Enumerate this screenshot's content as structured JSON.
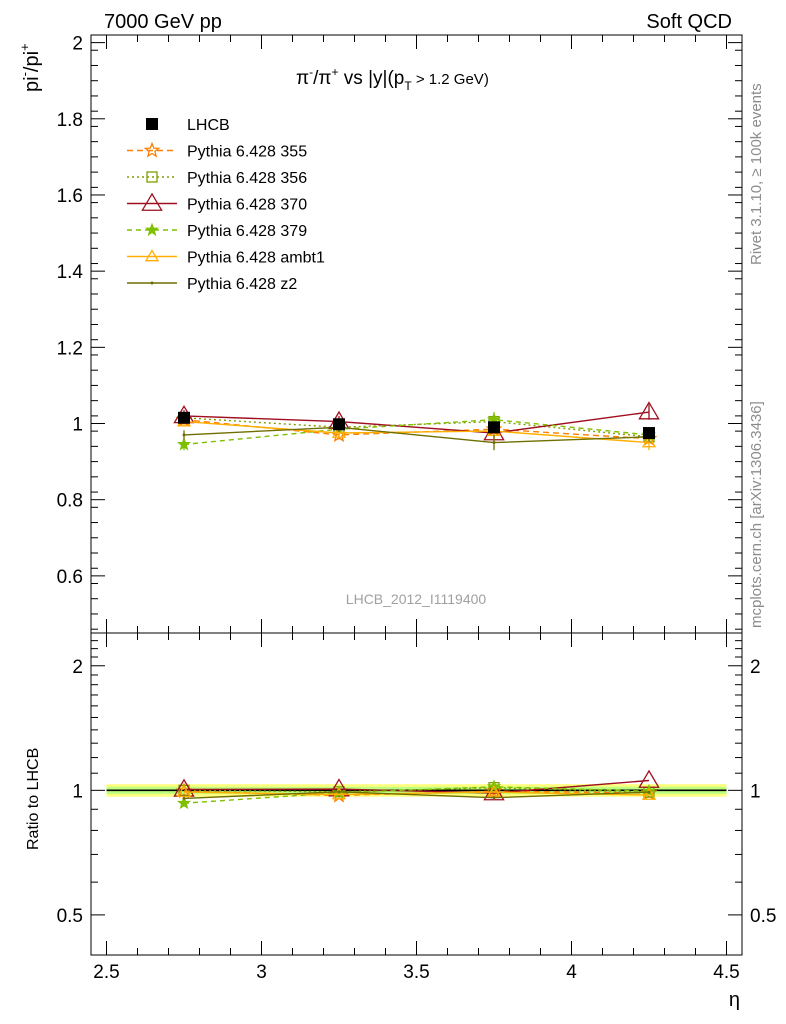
{
  "header": {
    "left": "7000 GeV pp",
    "right": "Soft QCD"
  },
  "side_texts": {
    "rivet": "Rivet 3.1.10, ≥ 100k events",
    "mcplots": "mcplots.cern.ch [arXiv:1306.3436]"
  },
  "watermark": "LHCB_2012_I1119400",
  "colors": {
    "data": "#000000",
    "p355": "#ff7f00",
    "p356": "#7f9f00",
    "p370": "#9f0f1f",
    "p379": "#7fbf00",
    "ambt1": "#ffaf00",
    "z2": "#6f6f00",
    "band_yellow": "#ffff7f",
    "band_green": "#bfff7f"
  },
  "chart_data": [
    {
      "type": "line",
      "title": "π⁻/π⁺ vs |y|(p_T > 1.2 GeV)",
      "ylabel": "pi⁻/pi⁺",
      "ylim": [
        0.45,
        2.02
      ],
      "yticks": [
        "0.6",
        "0.8",
        "1",
        "1.2",
        "1.4",
        "1.6",
        "1.8",
        "2"
      ],
      "x": [
        2.75,
        3.25,
        3.75,
        4.25
      ],
      "xlim": [
        2.45,
        4.55
      ],
      "legend_position": "top-left",
      "series": [
        {
          "name": "LHCB",
          "key": "data",
          "values": [
            1.015,
            0.998,
            0.99,
            0.975
          ],
          "errors": [
            0.012,
            0.012,
            0.015,
            0.015
          ]
        },
        {
          "name": "Pythia 6.428 355",
          "key": "p355",
          "values": [
            1.01,
            0.97,
            0.985,
            0.96
          ],
          "errors": [
            0.012,
            0.012,
            0.012,
            0.012
          ]
        },
        {
          "name": "Pythia 6.428 356",
          "key": "p356",
          "values": [
            1.015,
            0.99,
            1.005,
            0.965
          ],
          "errors": [
            0.012,
            0.012,
            0.015,
            0.012
          ]
        },
        {
          "name": "Pythia 6.428 370",
          "key": "p370",
          "values": [
            1.02,
            1.005,
            0.975,
            1.03
          ],
          "errors": [
            0.015,
            0.015,
            0.015,
            0.02
          ]
        },
        {
          "name": "Pythia 6.428 379",
          "key": "p379",
          "values": [
            0.945,
            0.985,
            1.01,
            0.97
          ],
          "errors": [
            0.015,
            0.012,
            0.02,
            0.012
          ]
        },
        {
          "name": "Pythia 6.428 ambt1",
          "key": "ambt1",
          "values": [
            1.005,
            0.975,
            0.98,
            0.95
          ],
          "errors": [
            0.012,
            0.012,
            0.012,
            0.02
          ]
        },
        {
          "name": "Pythia 6.428 z2",
          "key": "z2",
          "values": [
            0.97,
            0.99,
            0.95,
            0.965
          ],
          "errors": [
            0.012,
            0.012,
            0.02,
            0.012
          ]
        }
      ]
    },
    {
      "type": "line",
      "ylabel": "Ratio to LHCB",
      "xlabel": "η",
      "ylim": [
        0.4,
        2.4
      ],
      "yscale": "log",
      "yticks": [
        "0.5",
        "1",
        "2"
      ],
      "xticks": [
        "2.5",
        "3",
        "3.5",
        "4",
        "4.5"
      ],
      "x": [
        2.75,
        3.25,
        3.75,
        4.25
      ],
      "band": {
        "yellow_halfwidth": 0.035,
        "green_halfwidth": 0.02
      },
      "series": [
        {
          "name": "Pythia 6.428 355",
          "key": "p355",
          "values": [
            0.995,
            0.972,
            0.995,
            0.985
          ]
        },
        {
          "name": "Pythia 6.428 356",
          "key": "p356",
          "values": [
            1.0,
            0.992,
            1.015,
            0.99
          ]
        },
        {
          "name": "Pythia 6.428 370",
          "key": "p370",
          "values": [
            1.005,
            1.007,
            0.985,
            1.056
          ]
        },
        {
          "name": "Pythia 6.428 379",
          "key": "p379",
          "values": [
            0.931,
            0.987,
            1.02,
            0.995
          ]
        },
        {
          "name": "Pythia 6.428 ambt1",
          "key": "ambt1",
          "values": [
            0.99,
            0.977,
            0.99,
            0.974
          ]
        },
        {
          "name": "Pythia 6.428 z2",
          "key": "z2",
          "values": [
            0.956,
            0.992,
            0.96,
            0.99
          ]
        }
      ]
    }
  ]
}
